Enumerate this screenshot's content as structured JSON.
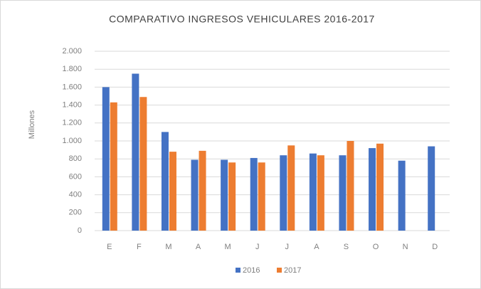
{
  "chart_data": {
    "type": "bar",
    "title": "COMPARATIVO INGRESOS VEHICULARES 2016-2017",
    "y_label": "Millones",
    "categories": [
      "E",
      "F",
      "M",
      "A",
      "M",
      "J",
      "J",
      "A",
      "S",
      "O",
      "N",
      "D"
    ],
    "series": [
      {
        "name": "2016",
        "color": "#4472c4",
        "values": [
          1600,
          1750,
          1100,
          790,
          790,
          810,
          840,
          860,
          840,
          920,
          780,
          940
        ]
      },
      {
        "name": "2017",
        "color": "#ed7d31",
        "values": [
          1430,
          1490,
          880,
          890,
          760,
          760,
          950,
          840,
          1000,
          970,
          null,
          null
        ]
      }
    ],
    "ylim": [
      0,
      2000
    ],
    "yticks": [
      0,
      200,
      400,
      600,
      800,
      {
        "value": 1000,
        "label": "1.000"
      },
      {
        "value": 1200,
        "label": "1.200"
      },
      {
        "value": 1400,
        "label": "1.400"
      },
      {
        "value": 1600,
        "label": "1.600"
      },
      {
        "value": 1800,
        "label": "1.800"
      },
      {
        "value": 2000,
        "label": "2.000"
      }
    ],
    "grid": true,
    "legend": "bottom"
  }
}
